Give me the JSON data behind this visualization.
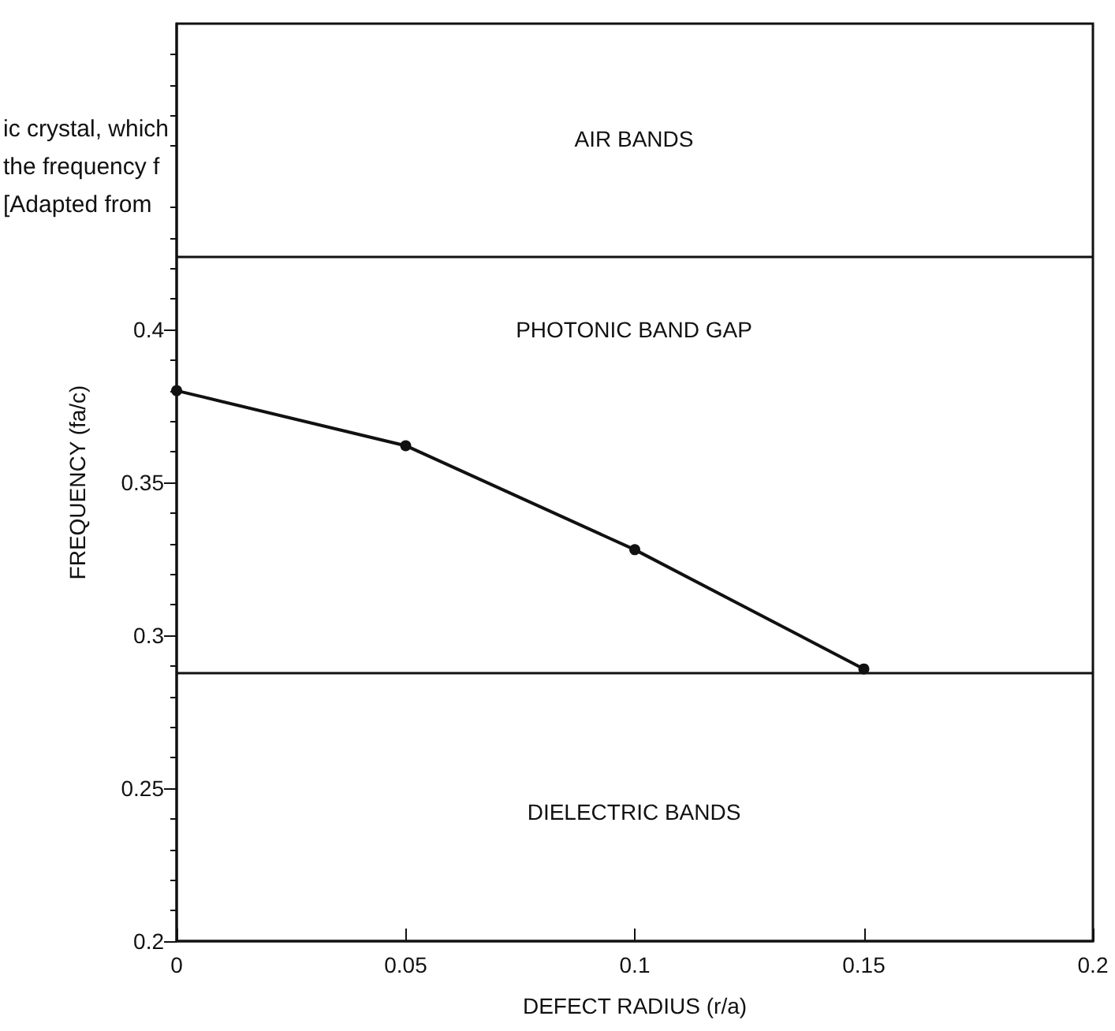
{
  "chart_data": {
    "type": "line",
    "xlabel": "DEFECT RADIUS (r/a)",
    "ylabel": "FREQUENCY (fa/c)",
    "x": [
      0,
      0.05,
      0.1,
      0.15
    ],
    "series": [
      {
        "color": "#111111",
        "values": [
          0.38,
          0.362,
          0.328,
          0.289
        ]
      }
    ],
    "marker": "circle",
    "line_style": "solid",
    "xlim": [
      0,
      0.2
    ],
    "xticks": [
      0,
      0.05,
      0.1,
      0.15,
      0.2
    ],
    "ylim": [
      0.2,
      0.5
    ],
    "yticks": [
      0.2,
      0.25,
      0.3,
      0.35,
      0.4
    ],
    "grid": false,
    "ref_lines": [
      {
        "axis": "y",
        "value": 0.288,
        "color": "#111111"
      },
      {
        "axis": "y",
        "value": 0.424,
        "color": "#111111"
      }
    ],
    "annotations": [
      "DIELECTRIC BANDS",
      "PHOTONIC BAND GAP",
      "AIR BANDS",
      "ic crystal, which",
      "the frequency f",
      "[Adapted from"
    ]
  }
}
